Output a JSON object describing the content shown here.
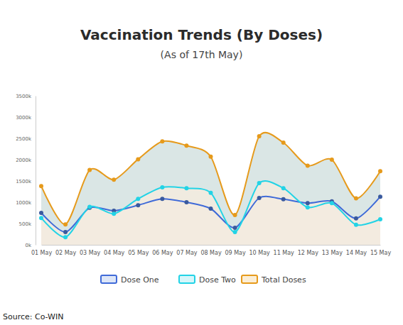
{
  "chart_data": {
    "type": "line",
    "title": "Vaccination Trends (By Doses)",
    "subtitle": "(As of 17th May)",
    "source": "Source: Co-WIN",
    "categories": [
      "01 May",
      "02 May",
      "03 May",
      "04 May",
      "05 May",
      "06 May",
      "07 May",
      "08 May",
      "09 May",
      "10 May",
      "11 May",
      "12 May",
      "13 May",
      "14 May",
      "15 May"
    ],
    "series": [
      {
        "name": "Dose One",
        "color": "#3f6ad8",
        "values": [
          750000,
          300000,
          870000,
          800000,
          930000,
          1080000,
          1000000,
          850000,
          400000,
          1100000,
          1070000,
          980000,
          1020000,
          620000,
          1130000
        ]
      },
      {
        "name": "Dose Two",
        "color": "#22d3e6",
        "values": [
          630000,
          180000,
          890000,
          730000,
          1080000,
          1350000,
          1330000,
          1220000,
          300000,
          1450000,
          1330000,
          880000,
          980000,
          470000,
          600000
        ]
      },
      {
        "name": "Total Doses",
        "color": "#e69a1b",
        "values": [
          1380000,
          480000,
          1760000,
          1530000,
          2010000,
          2430000,
          2330000,
          2070000,
          700000,
          2550000,
          2400000,
          1860000,
          2000000,
          1090000,
          1730000
        ]
      }
    ],
    "ylim": [
      0,
      3500000
    ],
    "yticks": [
      {
        "value": 0,
        "label": "0k"
      },
      {
        "value": 500000,
        "label": "500k"
      },
      {
        "value": 1000000,
        "label": "1000k"
      },
      {
        "value": 1500000,
        "label": "1500k"
      },
      {
        "value": 2000000,
        "label": "2000k"
      },
      {
        "value": 2500000,
        "label": "2500k"
      },
      {
        "value": 3000000,
        "label": "3000k"
      },
      {
        "value": 3500000,
        "label": "3500k"
      }
    ],
    "grid": false,
    "marker": "circle",
    "legend": "bottom"
  }
}
